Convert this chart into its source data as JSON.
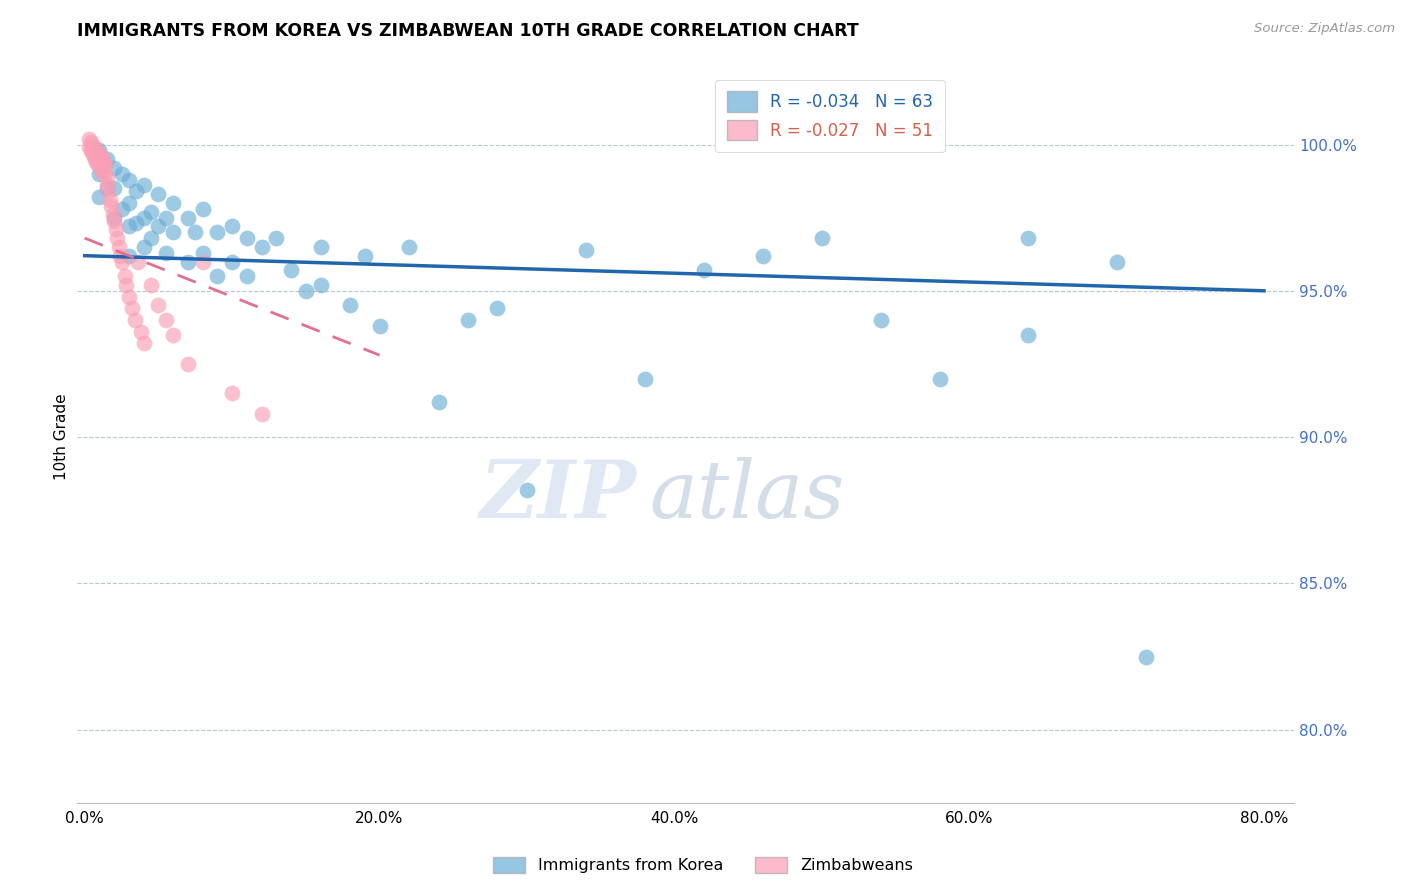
{
  "title": "IMMIGRANTS FROM KOREA VS ZIMBABWEAN 10TH GRADE CORRELATION CHART",
  "source": "Source: ZipAtlas.com",
  "ylabel": "10th Grade",
  "x_ticks": [
    "0.0%",
    "20.0%",
    "40.0%",
    "60.0%",
    "80.0%"
  ],
  "x_tick_vals": [
    0.0,
    0.2,
    0.4,
    0.6,
    0.8
  ],
  "y_ticks_right": [
    "100.0%",
    "95.0%",
    "90.0%",
    "85.0%",
    "80.0%"
  ],
  "y_tick_vals_right": [
    1.0,
    0.95,
    0.9,
    0.85,
    0.8
  ],
  "xlim": [
    -0.005,
    0.82
  ],
  "ylim": [
    0.775,
    1.025
  ],
  "korea_R": "-0.034",
  "korea_N": "63",
  "zim_R": "-0.027",
  "zim_N": "51",
  "korea_color": "#6baed6",
  "zim_color": "#fa9fb5",
  "korea_line_color": "#2166ac",
  "zim_line_color": "#e07090",
  "legend_label_korea": "Immigrants from Korea",
  "legend_label_zim": "Zimbabweans",
  "watermark_zip": "ZIP",
  "watermark_atlas": "atlas",
  "korea_trend_x": [
    0.0,
    0.8
  ],
  "korea_trend_y": [
    0.962,
    0.95
  ],
  "zim_trend_x": [
    0.0,
    0.2
  ],
  "zim_trend_y": [
    0.968,
    0.928
  ],
  "korea_scatter_x": [
    0.01,
    0.01,
    0.01,
    0.015,
    0.015,
    0.02,
    0.02,
    0.02,
    0.025,
    0.025,
    0.03,
    0.03,
    0.03,
    0.03,
    0.035,
    0.035,
    0.04,
    0.04,
    0.04,
    0.045,
    0.045,
    0.05,
    0.05,
    0.055,
    0.055,
    0.06,
    0.06,
    0.07,
    0.07,
    0.075,
    0.08,
    0.08,
    0.09,
    0.09,
    0.1,
    0.1,
    0.11,
    0.11,
    0.12,
    0.13,
    0.14,
    0.15,
    0.16,
    0.16,
    0.18,
    0.19,
    0.2,
    0.22,
    0.24,
    0.26,
    0.28,
    0.3,
    0.34,
    0.38,
    0.42,
    0.46,
    0.5,
    0.54,
    0.58,
    0.64,
    0.64,
    0.7,
    0.72
  ],
  "korea_scatter_y": [
    0.998,
    0.99,
    0.982,
    0.995,
    0.985,
    0.992,
    0.985,
    0.975,
    0.99,
    0.978,
    0.988,
    0.98,
    0.972,
    0.962,
    0.984,
    0.973,
    0.986,
    0.975,
    0.965,
    0.977,
    0.968,
    0.983,
    0.972,
    0.975,
    0.963,
    0.98,
    0.97,
    0.975,
    0.96,
    0.97,
    0.978,
    0.963,
    0.97,
    0.955,
    0.972,
    0.96,
    0.968,
    0.955,
    0.965,
    0.968,
    0.957,
    0.95,
    0.965,
    0.952,
    0.945,
    0.962,
    0.938,
    0.965,
    0.912,
    0.94,
    0.944,
    0.882,
    0.964,
    0.92,
    0.957,
    0.962,
    0.968,
    0.94,
    0.92,
    0.935,
    0.968,
    0.96,
    0.825
  ],
  "zim_scatter_x": [
    0.003,
    0.003,
    0.004,
    0.004,
    0.005,
    0.005,
    0.006,
    0.006,
    0.007,
    0.007,
    0.008,
    0.008,
    0.009,
    0.009,
    0.01,
    0.01,
    0.011,
    0.011,
    0.012,
    0.012,
    0.013,
    0.013,
    0.014,
    0.015,
    0.015,
    0.016,
    0.017,
    0.018,
    0.019,
    0.02,
    0.021,
    0.022,
    0.023,
    0.024,
    0.025,
    0.027,
    0.028,
    0.03,
    0.032,
    0.034,
    0.036,
    0.038,
    0.04,
    0.045,
    0.05,
    0.055,
    0.06,
    0.07,
    0.08,
    0.1,
    0.12
  ],
  "zim_scatter_y": [
    1.002,
    0.999,
    1.001,
    0.998,
    1.0,
    0.997,
    0.999,
    0.996,
    0.998,
    0.995,
    0.997,
    0.994,
    0.996,
    0.993,
    0.997,
    0.994,
    0.996,
    0.992,
    0.995,
    0.991,
    0.994,
    0.99,
    0.993,
    0.989,
    0.986,
    0.984,
    0.981,
    0.979,
    0.976,
    0.974,
    0.971,
    0.968,
    0.965,
    0.962,
    0.96,
    0.955,
    0.952,
    0.948,
    0.944,
    0.94,
    0.96,
    0.936,
    0.932,
    0.952,
    0.945,
    0.94,
    0.935,
    0.925,
    0.96,
    0.915,
    0.908
  ]
}
